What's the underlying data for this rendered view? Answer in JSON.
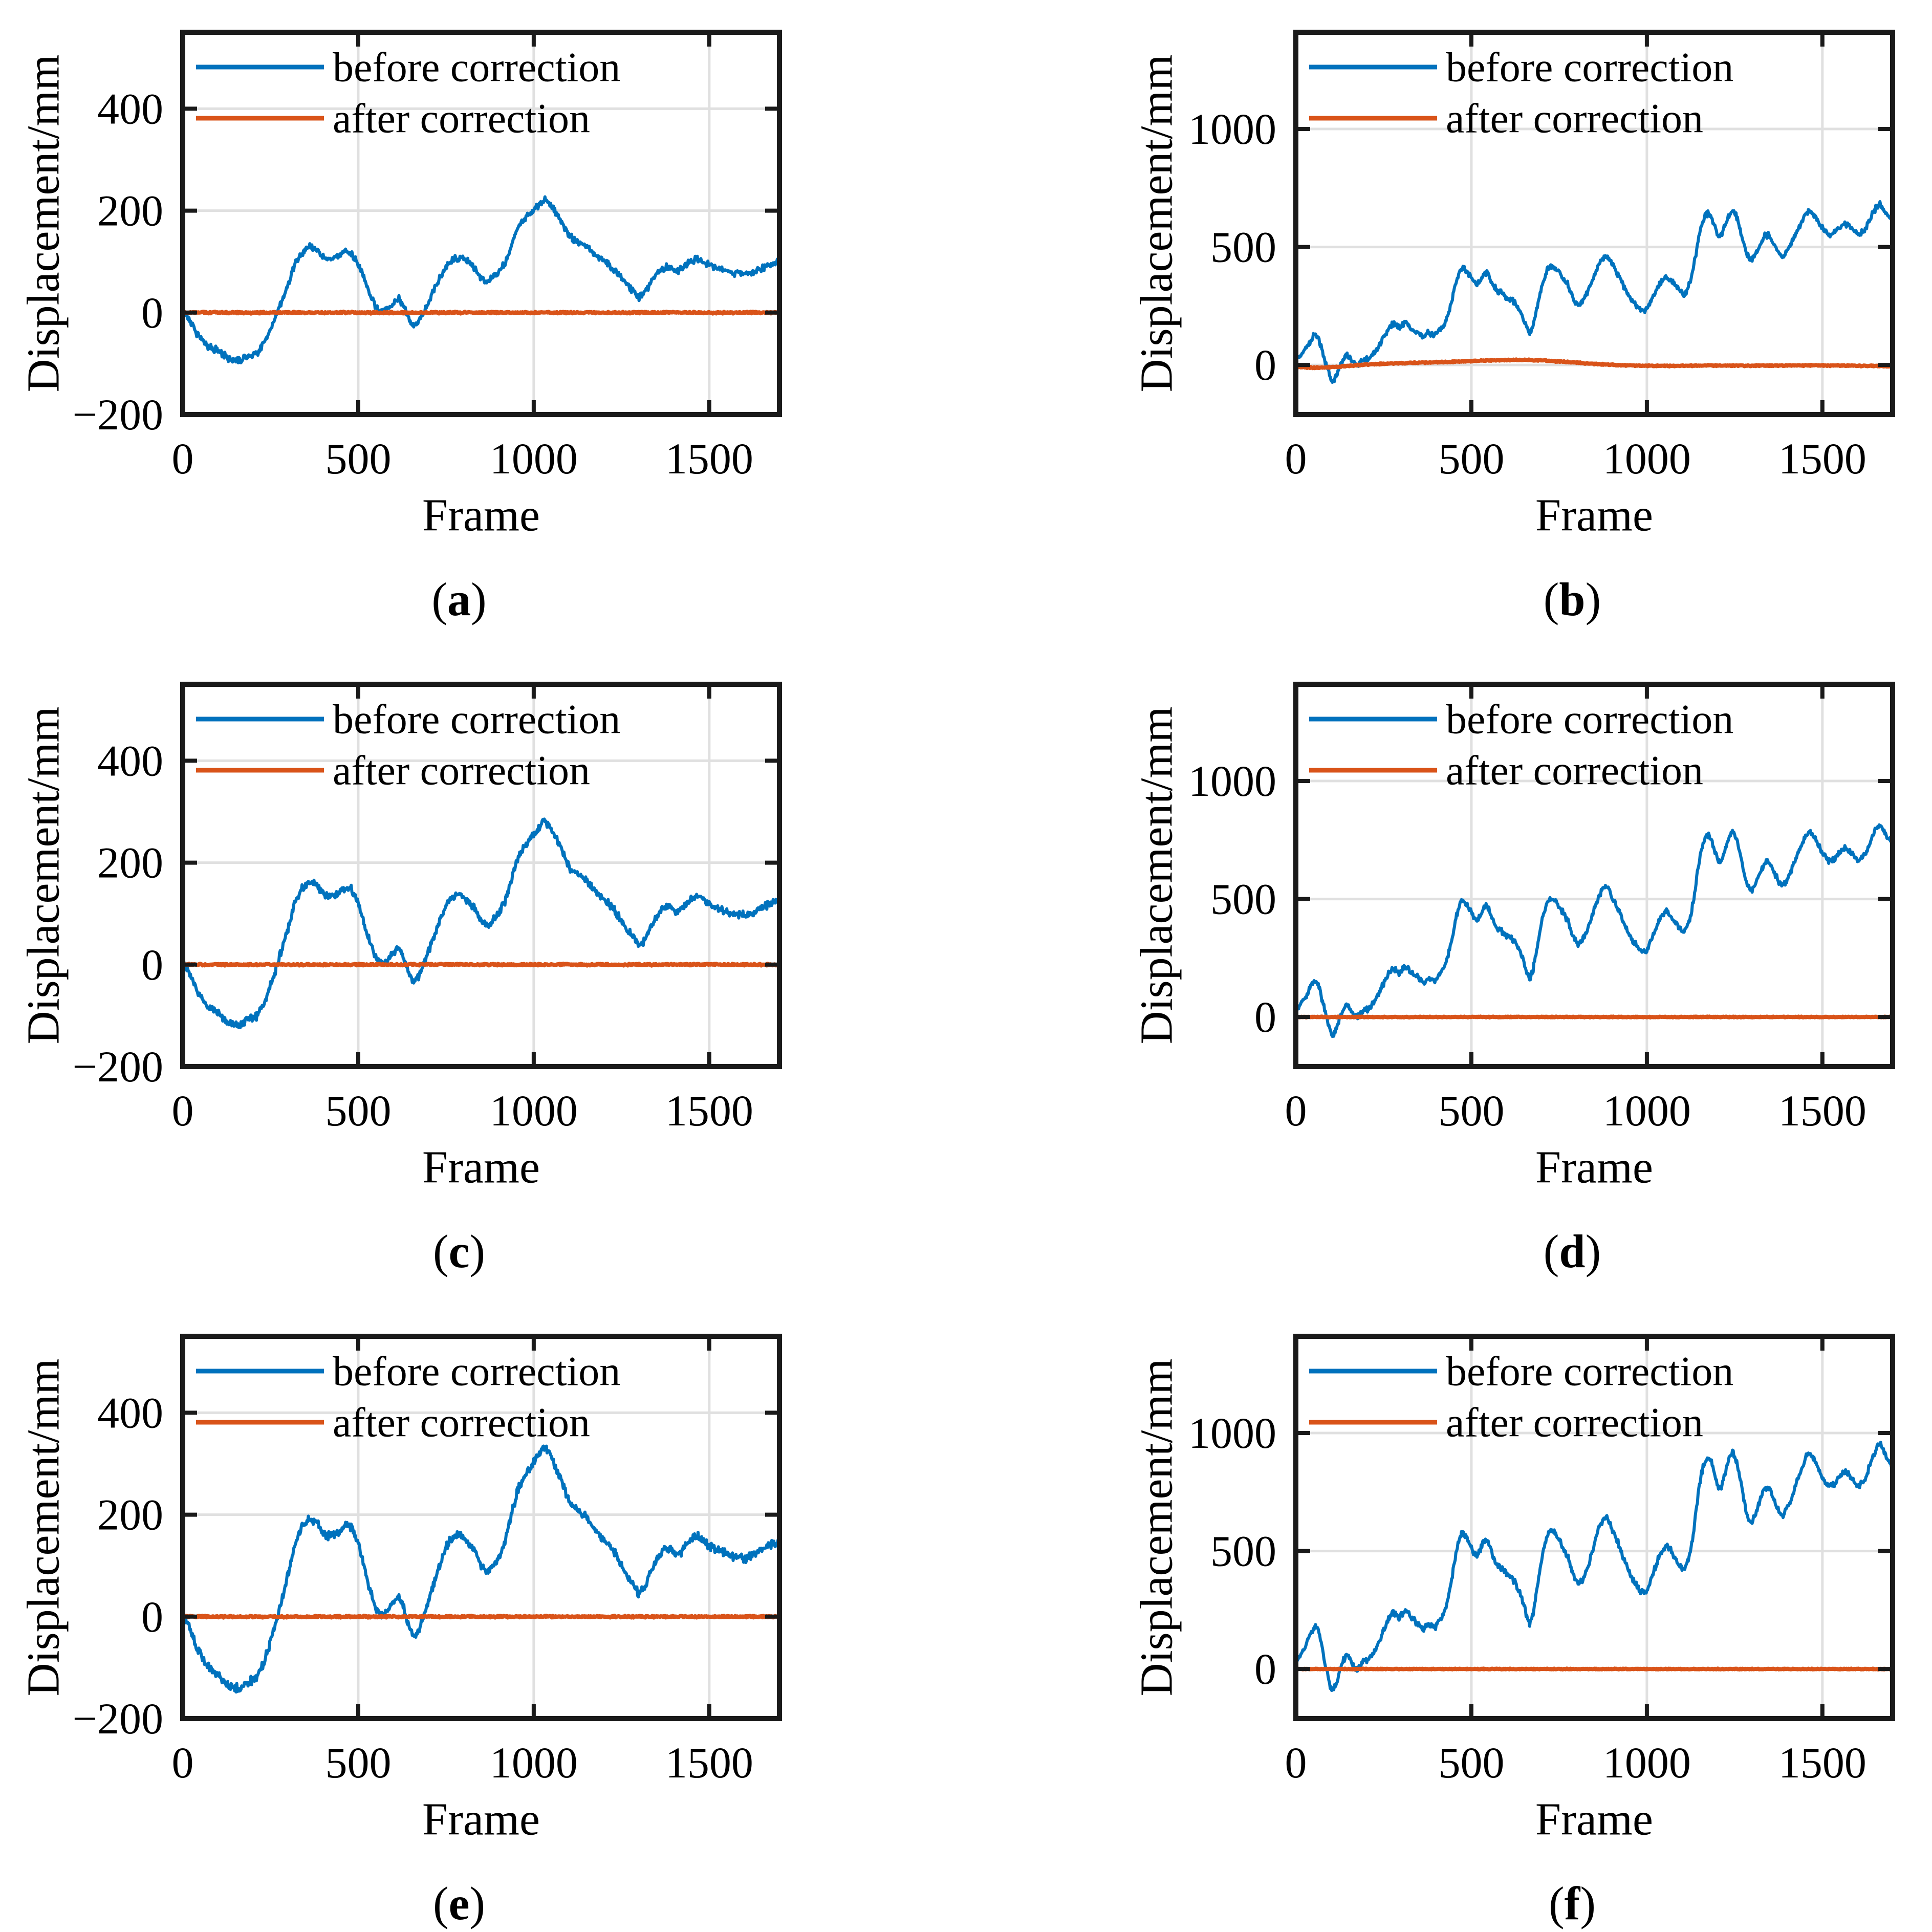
{
  "figure": {
    "background": "#ffffff",
    "x_label": "Frame",
    "y_label": "Displacement/mm",
    "legend": {
      "before_label": "before correction",
      "after_label": "after correction",
      "position": "top-left inside axes, no box"
    },
    "colors": {
      "before": "#0072BD",
      "after": "#D95319",
      "axis": "#1a1a1a",
      "grid": "#e0e0e0",
      "text": "#000000"
    },
    "panel_letters": [
      "a",
      "b",
      "c",
      "d",
      "e",
      "f"
    ]
  },
  "chart_data": {
    "type": "line",
    "layout": "3 rows x 2 columns of subplots",
    "x_label": "Frame",
    "y_label": "Displacement/mm",
    "grid": true,
    "legend_entries": [
      {
        "label": "before correction",
        "color": "#0072BD"
      },
      {
        "label": "after correction",
        "color": "#D95319"
      }
    ],
    "base_series": {
      "left_before": [
        [
          0,
          5
        ],
        [
          20,
          -15
        ],
        [
          40,
          -40
        ],
        [
          70,
          -65
        ],
        [
          100,
          -75
        ],
        [
          130,
          -90
        ],
        [
          160,
          -95
        ],
        [
          185,
          -85
        ],
        [
          210,
          -80
        ],
        [
          235,
          -55
        ],
        [
          255,
          -25
        ],
        [
          275,
          10
        ],
        [
          300,
          55
        ],
        [
          320,
          95
        ],
        [
          340,
          118
        ],
        [
          360,
          128
        ],
        [
          380,
          125
        ],
        [
          395,
          112
        ],
        [
          410,
          105
        ],
        [
          430,
          108
        ],
        [
          450,
          112
        ],
        [
          465,
          120
        ],
        [
          480,
          118
        ],
        [
          495,
          100
        ],
        [
          510,
          78
        ],
        [
          530,
          40
        ],
        [
          550,
          10
        ],
        [
          565,
          2
        ],
        [
          580,
          5
        ],
        [
          600,
          18
        ],
        [
          615,
          28
        ],
        [
          630,
          10
        ],
        [
          645,
          -15
        ],
        [
          660,
          -28
        ],
        [
          675,
          -15
        ],
        [
          690,
          5
        ],
        [
          710,
          35
        ],
        [
          730,
          65
        ],
        [
          750,
          90
        ],
        [
          770,
          105
        ],
        [
          790,
          108
        ],
        [
          810,
          100
        ],
        [
          830,
          88
        ],
        [
          850,
          68
        ],
        [
          865,
          60
        ],
        [
          880,
          65
        ],
        [
          900,
          78
        ],
        [
          920,
          100
        ],
        [
          940,
          140
        ],
        [
          955,
          165
        ],
        [
          970,
          180
        ],
        [
          985,
          192
        ],
        [
          1000,
          202
        ],
        [
          1015,
          212
        ],
        [
          1030,
          222
        ],
        [
          1045,
          215
        ],
        [
          1060,
          198
        ],
        [
          1075,
          182
        ],
        [
          1090,
          165
        ],
        [
          1105,
          148
        ],
        [
          1120,
          140
        ],
        [
          1135,
          135
        ],
        [
          1150,
          130
        ],
        [
          1165,
          120
        ],
        [
          1185,
          108
        ],
        [
          1205,
          98
        ],
        [
          1225,
          88
        ],
        [
          1245,
          72
        ],
        [
          1265,
          55
        ],
        [
          1285,
          42
        ],
        [
          1300,
          30
        ],
        [
          1315,
          38
        ],
        [
          1330,
          55
        ],
        [
          1345,
          70
        ],
        [
          1360,
          82
        ],
        [
          1375,
          90
        ],
        [
          1390,
          88
        ],
        [
          1405,
          82
        ],
        [
          1420,
          85
        ],
        [
          1435,
          95
        ],
        [
          1450,
          102
        ],
        [
          1465,
          105
        ],
        [
          1480,
          102
        ],
        [
          1495,
          95
        ],
        [
          1510,
          90
        ],
        [
          1525,
          88
        ],
        [
          1540,
          84
        ],
        [
          1555,
          80
        ],
        [
          1570,
          78
        ],
        [
          1585,
          78
        ],
        [
          1600,
          76
        ],
        [
          1615,
          78
        ],
        [
          1630,
          82
        ],
        [
          1645,
          86
        ],
        [
          1660,
          90
        ],
        [
          1680,
          95
        ],
        [
          1700,
          100
        ]
      ],
      "right_before": [
        [
          0,
          20
        ],
        [
          15,
          45
        ],
        [
          30,
          75
        ],
        [
          45,
          110
        ],
        [
          55,
          130
        ],
        [
          65,
          115
        ],
        [
          75,
          60
        ],
        [
          85,
          10
        ],
        [
          95,
          -40
        ],
        [
          105,
          -70
        ],
        [
          115,
          -45
        ],
        [
          125,
          -5
        ],
        [
          135,
          25
        ],
        [
          145,
          45
        ],
        [
          155,
          30
        ],
        [
          165,
          5
        ],
        [
          175,
          0
        ],
        [
          185,
          10
        ],
        [
          195,
          30
        ],
        [
          205,
          25
        ],
        [
          215,
          40
        ],
        [
          225,
          60
        ],
        [
          235,
          80
        ],
        [
          245,
          105
        ],
        [
          255,
          130
        ],
        [
          265,
          155
        ],
        [
          275,
          175
        ],
        [
          285,
          165
        ],
        [
          295,
          155
        ],
        [
          305,
          170
        ],
        [
          315,
          180
        ],
        [
          325,
          160
        ],
        [
          335,
          150
        ],
        [
          345,
          140
        ],
        [
          355,
          130
        ],
        [
          365,
          120
        ],
        [
          375,
          135
        ],
        [
          385,
          130
        ],
        [
          395,
          125
        ],
        [
          405,
          140
        ],
        [
          415,
          160
        ],
        [
          425,
          180
        ],
        [
          435,
          220
        ],
        [
          445,
          280
        ],
        [
          455,
          340
        ],
        [
          465,
          390
        ],
        [
          475,
          415
        ],
        [
          485,
          400
        ],
        [
          495,
          380
        ],
        [
          505,
          355
        ],
        [
          515,
          340
        ],
        [
          525,
          360
        ],
        [
          535,
          385
        ],
        [
          545,
          395
        ],
        [
          555,
          360
        ],
        [
          565,
          330
        ],
        [
          575,
          310
        ],
        [
          585,
          305
        ],
        [
          595,
          295
        ],
        [
          605,
          280
        ],
        [
          615,
          275
        ],
        [
          625,
          265
        ],
        [
          635,
          240
        ],
        [
          645,
          210
        ],
        [
          655,
          170
        ],
        [
          665,
          135
        ],
        [
          675,
          160
        ],
        [
          685,
          230
        ],
        [
          695,
          300
        ],
        [
          705,
          360
        ],
        [
          715,
          400
        ],
        [
          725,
          420
        ],
        [
          735,
          415
        ],
        [
          745,
          400
        ],
        [
          755,
          380
        ],
        [
          765,
          360
        ],
        [
          775,
          340
        ],
        [
          785,
          300
        ],
        [
          795,
          270
        ],
        [
          805,
          255
        ],
        [
          815,
          270
        ],
        [
          825,
          290
        ],
        [
          835,
          320
        ],
        [
          845,
          360
        ],
        [
          855,
          400
        ],
        [
          865,
          430
        ],
        [
          875,
          455
        ],
        [
          885,
          460
        ],
        [
          895,
          440
        ],
        [
          905,
          415
        ],
        [
          915,
          390
        ],
        [
          925,
          360
        ],
        [
          935,
          330
        ],
        [
          945,
          305
        ],
        [
          955,
          280
        ],
        [
          965,
          260
        ],
        [
          975,
          245
        ],
        [
          985,
          235
        ],
        [
          995,
          230
        ],
        [
          1005,
          250
        ],
        [
          1015,
          280
        ],
        [
          1025,
          310
        ],
        [
          1035,
          340
        ],
        [
          1045,
          360
        ],
        [
          1055,
          375
        ],
        [
          1065,
          365
        ],
        [
          1075,
          345
        ],
        [
          1085,
          330
        ],
        [
          1095,
          315
        ],
        [
          1105,
          300
        ],
        [
          1115,
          320
        ],
        [
          1125,
          360
        ],
        [
          1135,
          430
        ],
        [
          1145,
          520
        ],
        [
          1155,
          590
        ],
        [
          1165,
          630
        ],
        [
          1175,
          645
        ],
        [
          1185,
          620
        ],
        [
          1195,
          580
        ],
        [
          1205,
          545
        ],
        [
          1215,
          560
        ],
        [
          1225,
          600
        ],
        [
          1235,
          640
        ],
        [
          1245,
          655
        ],
        [
          1255,
          630
        ],
        [
          1265,
          580
        ],
        [
          1275,
          520
        ],
        [
          1285,
          470
        ],
        [
          1295,
          440
        ],
        [
          1305,
          455
        ],
        [
          1315,
          485
        ],
        [
          1325,
          520
        ],
        [
          1335,
          545
        ],
        [
          1345,
          550
        ],
        [
          1355,
          530
        ],
        [
          1365,
          505
        ],
        [
          1375,
          480
        ],
        [
          1385,
          465
        ],
        [
          1395,
          475
        ],
        [
          1405,
          500
        ],
        [
          1415,
          530
        ],
        [
          1425,
          560
        ],
        [
          1435,
          590
        ],
        [
          1445,
          620
        ],
        [
          1455,
          645
        ],
        [
          1465,
          655
        ],
        [
          1475,
          640
        ],
        [
          1485,
          615
        ],
        [
          1495,
          590
        ],
        [
          1505,
          570
        ],
        [
          1515,
          555
        ],
        [
          1525,
          550
        ],
        [
          1535,
          560
        ],
        [
          1545,
          575
        ],
        [
          1555,
          590
        ],
        [
          1565,
          600
        ],
        [
          1575,
          590
        ],
        [
          1585,
          575
        ],
        [
          1595,
          560
        ],
        [
          1605,
          555
        ],
        [
          1615,
          565
        ],
        [
          1625,
          585
        ],
        [
          1635,
          615
        ],
        [
          1645,
          645
        ],
        [
          1655,
          670
        ],
        [
          1665,
          680
        ],
        [
          1675,
          660
        ],
        [
          1685,
          635
        ],
        [
          1695,
          620
        ],
        [
          1700,
          618
        ]
      ],
      "flat_after": [
        [
          0,
          0
        ],
        [
          1700,
          0
        ]
      ],
      "right_after_b": [
        [
          0,
          -8
        ],
        [
          60,
          -12
        ],
        [
          120,
          -8
        ],
        [
          200,
          2
        ],
        [
          300,
          8
        ],
        [
          420,
          12
        ],
        [
          520,
          18
        ],
        [
          620,
          22
        ],
        [
          700,
          20
        ],
        [
          780,
          12
        ],
        [
          860,
          4
        ],
        [
          940,
          -2
        ],
        [
          1020,
          -4
        ],
        [
          1100,
          -3
        ],
        [
          1200,
          -2
        ],
        [
          1300,
          -3
        ],
        [
          1400,
          -2
        ],
        [
          1500,
          -2
        ],
        [
          1600,
          -3
        ],
        [
          1700,
          -5
        ]
      ]
    },
    "panels": [
      {
        "letter": "a",
        "x_lim": [
          0,
          1700
        ],
        "y_lim": [
          -200,
          550
        ],
        "x_ticks": [
          0,
          500,
          1000,
          1500
        ],
        "y_ticks": [
          -200,
          0,
          200,
          400
        ],
        "before": {
          "base": "left_before",
          "scale": 1.0,
          "noise": 8
        },
        "after": {
          "base": "flat_after",
          "scale": 1.0,
          "noise": 2
        }
      },
      {
        "letter": "b",
        "x_lim": [
          0,
          1700
        ],
        "y_lim": [
          -210,
          1410
        ],
        "x_ticks": [
          0,
          500,
          1000,
          1500
        ],
        "y_ticks": [
          0,
          500,
          1000
        ],
        "before": {
          "base": "right_before",
          "scale": 1.0,
          "noise": 15
        },
        "after": {
          "base": "right_after_b",
          "scale": 1.0,
          "noise": 3
        }
      },
      {
        "letter": "c",
        "x_lim": [
          0,
          1700
        ],
        "y_lim": [
          -200,
          550
        ],
        "x_ticks": [
          0,
          500,
          1000,
          1500
        ],
        "y_ticks": [
          -200,
          0,
          200,
          400
        ],
        "before": {
          "base": "left_before",
          "scale": 1.27,
          "noise": 9
        },
        "after": {
          "base": "flat_after",
          "scale": 1.0,
          "noise": 2
        }
      },
      {
        "letter": "d",
        "x_lim": [
          0,
          1700
        ],
        "y_lim": [
          -210,
          1410
        ],
        "x_ticks": [
          0,
          500,
          1000,
          1500
        ],
        "y_ticks": [
          0,
          500,
          1000
        ],
        "before": {
          "base": "right_before",
          "scale": 1.2,
          "noise": 15
        },
        "after": {
          "base": "flat_after",
          "scale": 1.0,
          "noise": 2
        }
      },
      {
        "letter": "e",
        "x_lim": [
          0,
          1700
        ],
        "y_lim": [
          -200,
          550
        ],
        "x_ticks": [
          0,
          500,
          1000,
          1500
        ],
        "y_ticks": [
          -200,
          0,
          200,
          400
        ],
        "before": {
          "base": "left_before",
          "scale": 1.5,
          "noise": 10
        },
        "after": {
          "base": "flat_after",
          "scale": 1.0,
          "noise": 2
        }
      },
      {
        "letter": "f",
        "x_lim": [
          0,
          1700
        ],
        "y_lim": [
          -210,
          1410
        ],
        "x_ticks": [
          0,
          500,
          1000,
          1500
        ],
        "y_ticks": [
          0,
          500,
          1000
        ],
        "before": {
          "base": "right_before",
          "scale": 1.4,
          "noise": 16
        },
        "after": {
          "base": "flat_after",
          "scale": 1.0,
          "noise": 2
        }
      }
    ]
  }
}
